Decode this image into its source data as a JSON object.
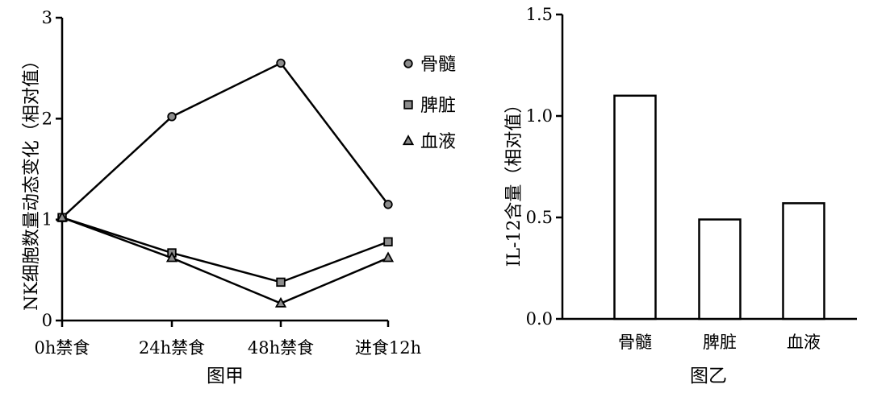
{
  "chart_data": [
    {
      "type": "line",
      "caption": "图甲",
      "ylabel": "NK细胞数量动态变化（相对值）",
      "xlabel": "",
      "categories": [
        "0h禁食",
        "24h禁食",
        "48h禁食",
        "进食12h"
      ],
      "ylim": [
        0,
        3
      ],
      "yticks": [
        "0",
        "1",
        "2",
        "3"
      ],
      "legend_position": "top-right",
      "series": [
        {
          "name": "骨髓",
          "marker": "circle",
          "values": [
            1.02,
            2.02,
            2.55,
            1.15
          ]
        },
        {
          "name": "脾脏",
          "marker": "square",
          "values": [
            1.02,
            0.67,
            0.38,
            0.78
          ]
        },
        {
          "name": "血液",
          "marker": "triangle",
          "values": [
            1.02,
            0.62,
            0.17,
            0.62
          ]
        }
      ],
      "colors": {
        "line": "#000000",
        "marker_fill": "#8c8c8c"
      }
    },
    {
      "type": "bar",
      "caption": "图乙",
      "ylabel": "IL-12含量（相对值）",
      "xlabel": "",
      "categories": [
        "骨髓",
        "脾脏",
        "血液"
      ],
      "values": [
        1.1,
        0.49,
        0.57
      ],
      "ylim": [
        0,
        1.5
      ],
      "yticks": [
        "0.0",
        "0.5",
        "1.0",
        "1.5"
      ],
      "colors": {
        "bar_fill": "#ffffff",
        "bar_stroke": "#000000"
      }
    }
  ]
}
